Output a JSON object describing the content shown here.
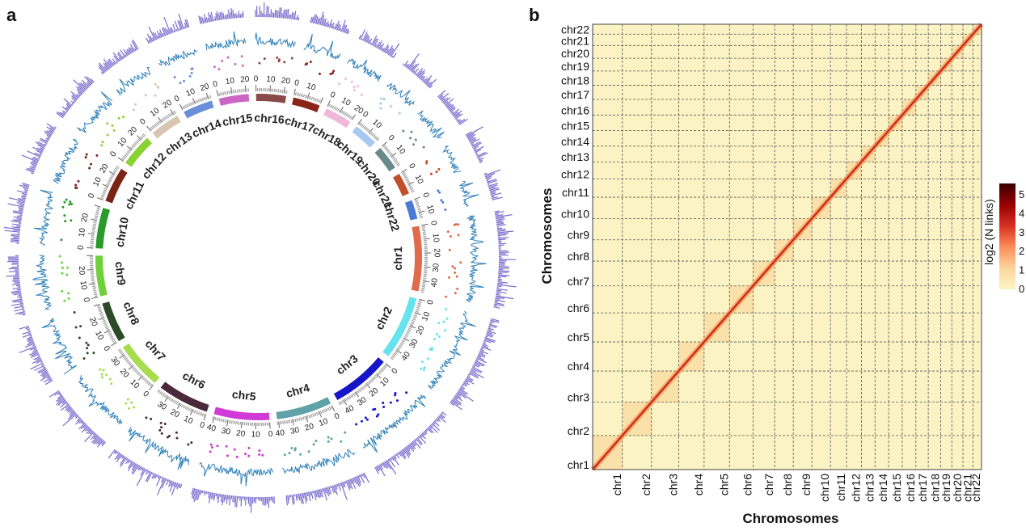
{
  "figure": {
    "panel_a_label": "a",
    "panel_b_label": "b"
  },
  "chart_data": [
    {
      "type": "circos",
      "panel": "a",
      "chromosomes": [
        {
          "name": "chr1",
          "size": 48,
          "color": "#e06a4c",
          "ticks": [
            "0",
            "10",
            "20",
            "30",
            "40"
          ]
        },
        {
          "name": "chr2",
          "size": 47,
          "color": "#66e3ee",
          "ticks": [
            "0",
            "10",
            "20",
            "30",
            "40"
          ]
        },
        {
          "name": "chr3",
          "size": 44,
          "color": "#1616c8",
          "ticks": [
            "0",
            "10",
            "20",
            "30",
            "40"
          ]
        },
        {
          "name": "chr4",
          "size": 41,
          "color": "#5fa3a8",
          "ticks": [
            "0",
            "10",
            "20",
            "30",
            "40"
          ]
        },
        {
          "name": "chr5",
          "size": 41,
          "color": "#d13ad6",
          "ticks": [
            "0",
            "10",
            "20",
            "30",
            "40"
          ]
        },
        {
          "name": "chr6",
          "size": 38,
          "color": "#4a2a3a",
          "ticks": [
            "0",
            "10",
            "20",
            "30"
          ]
        },
        {
          "name": "chr7",
          "size": 35,
          "color": "#a6dc4e",
          "ticks": [
            "0",
            "10",
            "20",
            "30"
          ]
        },
        {
          "name": "chr8",
          "size": 30,
          "color": "#2c4a28",
          "ticks": [
            "0",
            "10",
            "20"
          ]
        },
        {
          "name": "chr9",
          "size": 30,
          "color": "#6fd13a",
          "ticks": [
            "0",
            "10",
            "20"
          ]
        },
        {
          "name": "chr10",
          "size": 30,
          "color": "#2a9a2a",
          "ticks": [
            "0",
            "10",
            "20"
          ]
        },
        {
          "name": "chr11",
          "size": 26,
          "color": "#7a2418",
          "ticks": [
            "0",
            "10",
            "20"
          ]
        },
        {
          "name": "chr12",
          "size": 24,
          "color": "#8ad232",
          "ticks": [
            "0",
            "10",
            "20"
          ]
        },
        {
          "name": "chr13",
          "size": 22,
          "color": "#d8c6b0",
          "ticks": [
            "0",
            "10",
            "20"
          ]
        },
        {
          "name": "chr14",
          "size": 22,
          "color": "#6a8ed8",
          "ticks": [
            "0",
            "10",
            "20"
          ]
        },
        {
          "name": "chr15",
          "size": 22,
          "color": "#cc66c4",
          "ticks": [
            "0",
            "10",
            "20"
          ]
        },
        {
          "name": "chr16",
          "size": 22,
          "color": "#8a4a4a",
          "ticks": [
            "0",
            "10",
            "20"
          ]
        },
        {
          "name": "chr17",
          "size": 20,
          "color": "#8a2418",
          "ticks": [
            "0",
            "10"
          ]
        },
        {
          "name": "chr18",
          "size": 20,
          "color": "#f0b8d8",
          "ticks": [
            "0",
            "10",
            "20"
          ]
        },
        {
          "name": "chr19",
          "size": 18,
          "color": "#a8c8f0",
          "ticks": [
            "0",
            "10"
          ]
        },
        {
          "name": "chr20",
          "size": 18,
          "color": "#6a8a8a",
          "ticks": [
            "0",
            "10"
          ]
        },
        {
          "name": "chr21",
          "size": 16,
          "color": "#c0502a",
          "ticks": [
            "0",
            "10"
          ]
        },
        {
          "name": "chr22",
          "size": 14,
          "color": "#4a7ad8",
          "ticks": [
            "0",
            "10"
          ]
        }
      ],
      "tracks": [
        "chromosome ideogram",
        "scatter points",
        "blue line density",
        "purple histogram"
      ],
      "track_colors": {
        "line": "#2e7fb8",
        "histogram": "#7a6ccc"
      }
    },
    {
      "type": "heatmap",
      "panel": "b",
      "xlabel": "Chromosomes",
      "ylabel": "Chromosomes",
      "categories": [
        "chr1",
        "chr2",
        "chr3",
        "chr4",
        "chr5",
        "chr6",
        "chr7",
        "chr8",
        "chr9",
        "chr10",
        "chr11",
        "chr12",
        "chr13",
        "chr14",
        "chr15",
        "chr16",
        "chr17",
        "chr18",
        "chr19",
        "chr20",
        "chr21",
        "chr22"
      ],
      "chrom_sizes": [
        48,
        47,
        44,
        41,
        41,
        38,
        35,
        30,
        30,
        30,
        26,
        24,
        22,
        22,
        22,
        22,
        20,
        20,
        18,
        18,
        16,
        14
      ],
      "colorbar": {
        "title": "log2 (N links)",
        "ticks": [
          "0",
          "1",
          "2",
          "3",
          "4",
          "5"
        ],
        "range": [
          0,
          5.6
        ],
        "colors": [
          "#fdf5c3",
          "#fdd49e",
          "#fc8d59",
          "#d7301f",
          "#990000",
          "#3a0000"
        ]
      },
      "background_color": "#fbf3c4",
      "grid": "dashed",
      "pattern": "strong diagonal, light intra-chromosomal blocks, near-zero inter-chromosomal links"
    }
  ]
}
